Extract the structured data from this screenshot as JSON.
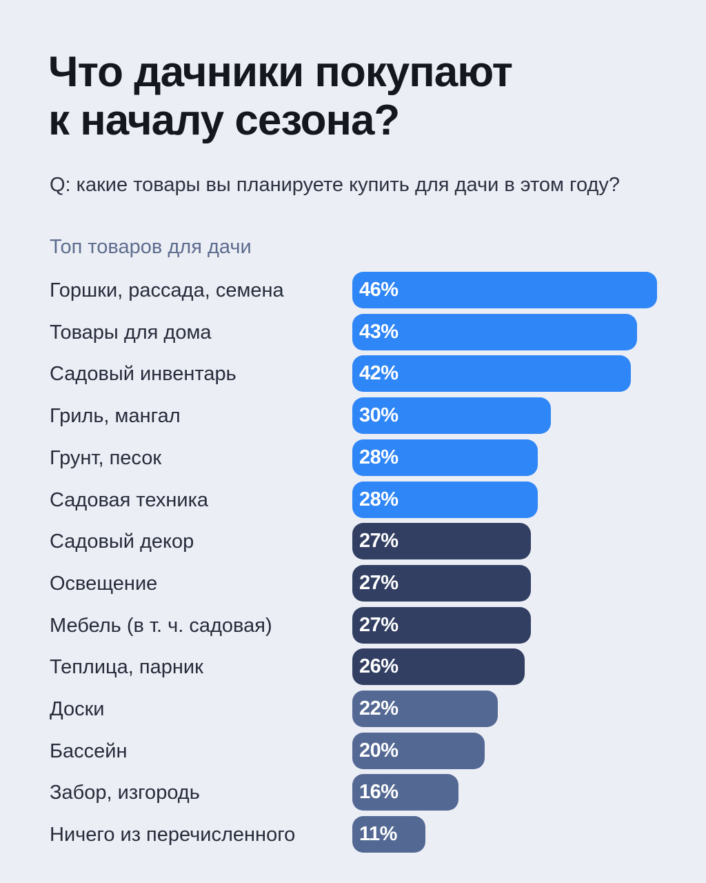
{
  "title_lines": [
    "Что дачники покупают",
    "к началу сезона?"
  ],
  "question": "Q: какие товары вы планируете купить для дачи в этом году?",
  "subtitle": "Топ товаров для дачи",
  "colors": {
    "background": "#ECEEF5",
    "bright_blue": "#2F86F7",
    "dark_navy": "#323F62",
    "slate_blue": "#536893"
  },
  "chart_data": {
    "type": "bar",
    "orientation": "horizontal",
    "categories": [
      "Горшки, рассада, семена",
      "Товары для дома",
      "Садовый инвентарь",
      "Гриль, мангал",
      "Грунт, песок",
      "Садовая техника",
      "Садовый декор",
      "Освещение",
      "Мебель (в т. ч. садовая)",
      "Теплица, парник",
      "Доски",
      "Бассейн",
      "Забор, изгородь",
      "Ничего из перечисленного"
    ],
    "values": [
      46,
      43,
      42,
      30,
      28,
      28,
      27,
      27,
      27,
      26,
      22,
      20,
      16,
      11
    ],
    "value_labels": [
      "46%",
      "43%",
      "42%",
      "30%",
      "28%",
      "28%",
      "27%",
      "27%",
      "27%",
      "26%",
      "22%",
      "20%",
      "16%",
      "11%"
    ],
    "bar_colors": [
      "#2F86F7",
      "#2F86F7",
      "#2F86F7",
      "#2F86F7",
      "#2F86F7",
      "#2F86F7",
      "#323F62",
      "#323F62",
      "#323F62",
      "#323F62",
      "#536893",
      "#536893",
      "#536893",
      "#536893"
    ],
    "unit": "%",
    "grid": false,
    "legend": "none"
  }
}
